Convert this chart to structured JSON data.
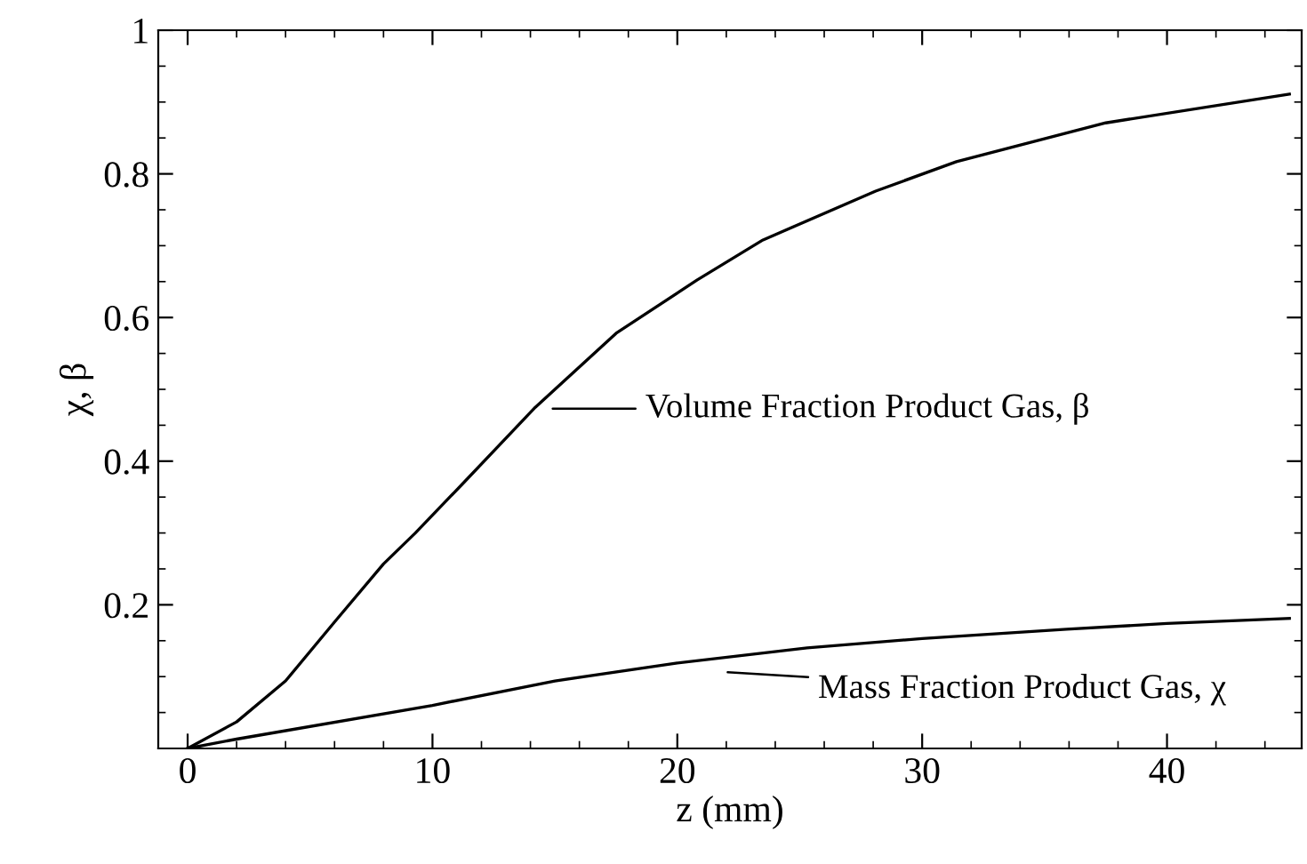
{
  "chart_data": {
    "type": "line",
    "xlabel": "z (mm)",
    "ylabel": "χ, β",
    "series": [
      {
        "color": "#000000",
        "x": [
          0,
          2,
          4,
          6,
          8,
          9.3,
          11.3,
          14.2,
          17.5,
          20.8,
          23.5,
          28.1,
          31.4,
          37.5,
          45
        ],
        "values": [
          0,
          0.037,
          0.094,
          0.176,
          0.257,
          0.3,
          0.371,
          0.475,
          0.578,
          0.652,
          0.708,
          0.776,
          0.817,
          0.871,
          0.911
        ]
      },
      {
        "color": "#000000",
        "x": [
          0,
          2,
          10,
          15,
          20,
          25.3,
          30,
          35.9,
          40,
          45
        ],
        "values": [
          0,
          0.013,
          0.06,
          0.094,
          0.119,
          0.14,
          0.153,
          0.166,
          0.174,
          0.181
        ]
      }
    ],
    "annotations": [
      "Volume Fraction Product Gas, β",
      "Mass Fraction Product Gas, χ"
    ],
    "xlim": [
      -1.2,
      45.5
    ],
    "ylim": [
      0,
      1
    ],
    "xticks": [
      0,
      10,
      20,
      30,
      40
    ],
    "yticks": [
      0.2,
      0.4,
      0.6,
      0.8,
      {
        "value": 1,
        "label": "1"
      }
    ],
    "grid": false,
    "legend": false,
    "marker": "none",
    "line_style": "solid"
  }
}
